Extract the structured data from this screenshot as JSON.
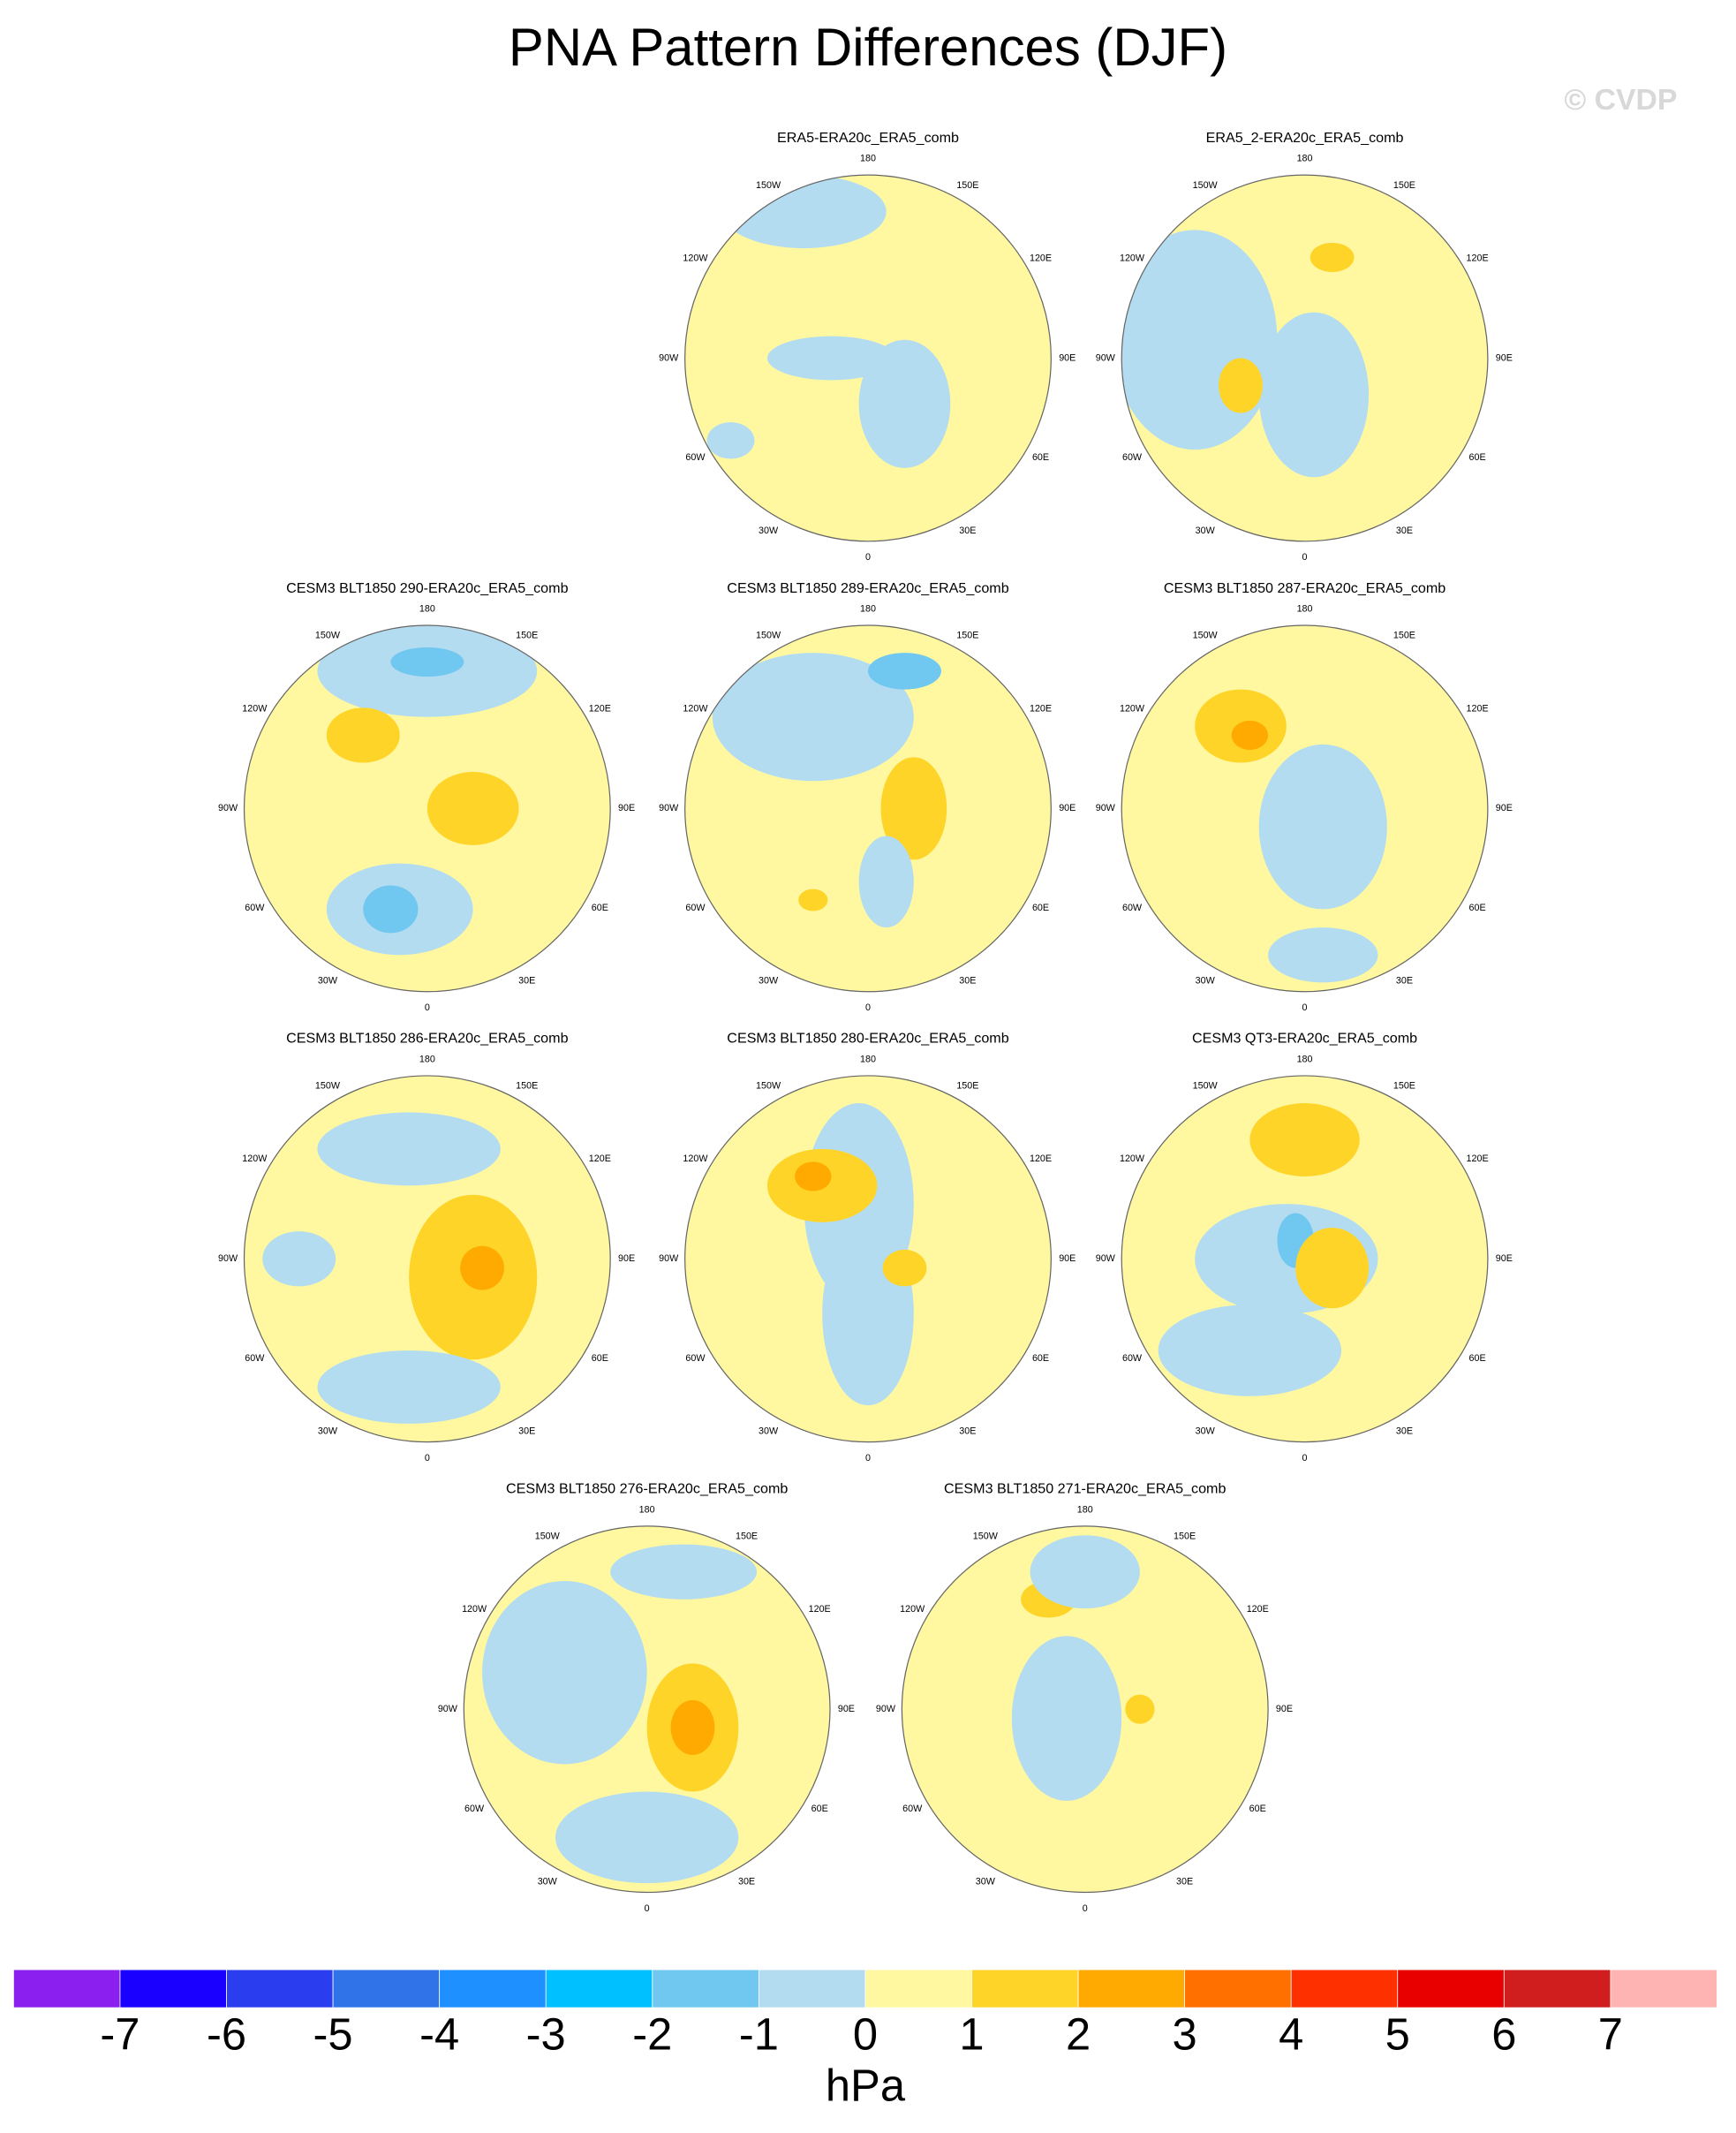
{
  "title": "PNA Pattern Differences (DJF)",
  "watermark": "© CVDP",
  "panels": [
    {
      "title": "ERA5-ERA20c_ERA5_comb"
    },
    {
      "title": "ERA5_2-ERA20c_ERA5_comb"
    },
    {
      "title": "CESM3 BLT1850 290-ERA20c_ERA5_comb"
    },
    {
      "title": "CESM3 BLT1850 289-ERA20c_ERA5_comb"
    },
    {
      "title": "CESM3 BLT1850 287-ERA20c_ERA5_comb"
    },
    {
      "title": "CESM3 BLT1850 286-ERA20c_ERA5_comb"
    },
    {
      "title": "CESM3 BLT1850 280-ERA20c_ERA5_comb"
    },
    {
      "title": "CESM3 QT3-ERA20c_ERA5_comb"
    },
    {
      "title": "CESM3 BLT1850 276-ERA20c_ERA5_comb"
    },
    {
      "title": "CESM3 BLT1850 271-ERA20c_ERA5_comb"
    }
  ],
  "lon_ticks": [
    0,
    {
      "value": 30,
      "label": "30E"
    },
    {
      "value": 60,
      "label": "60E"
    },
    {
      "value": 90,
      "label": "90E"
    },
    {
      "value": 120,
      "label": "120E"
    },
    {
      "value": 150,
      "label": "150E"
    },
    180,
    {
      "value": -150,
      "label": "150W"
    },
    {
      "value": -120,
      "label": "120W"
    },
    {
      "value": -90,
      "label": "90W"
    },
    {
      "value": -60,
      "label": "60W"
    },
    {
      "value": -30,
      "label": "30W"
    }
  ],
  "colorbar": {
    "colors": [
      "#8a1ff0",
      "#1a00ff",
      "#2a3ef0",
      "#3072e8",
      "#1e90ff",
      "#00c0ff",
      "#70c8f0",
      "#b4dcf0",
      "#fff8a0",
      "#ffd428",
      "#ffaa00",
      "#ff7000",
      "#ff3000",
      "#e80000",
      "#d01e1e",
      "#ffb4b4"
    ],
    "ticks": [
      -7,
      -6,
      -5,
      -4,
      -3,
      -2,
      -1,
      0,
      1,
      2,
      3,
      4,
      5,
      6,
      7
    ],
    "units": "hPa"
  }
}
